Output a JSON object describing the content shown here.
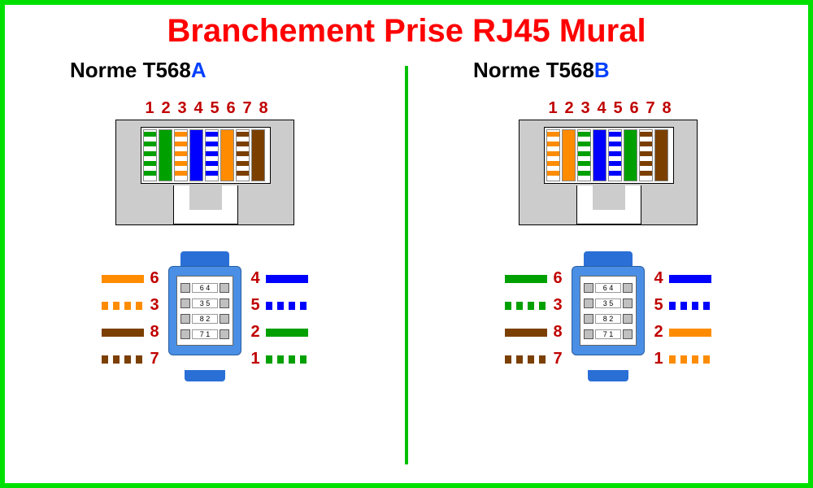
{
  "title": "Branchement Prise RJ45 Mural",
  "frame_border_color": "#00e000",
  "divider_color": "#00c000",
  "title_color": "#ff0000",
  "number_color": "#c00000",
  "jack_body_color": "#cccccc",
  "keystone_color": "#4a8fe5",
  "colors": {
    "green": "#00a000",
    "orange": "#ff8c00",
    "blue": "#0000ff",
    "brown": "#7b3f00"
  },
  "panels": [
    {
      "subtitle_prefix": "Norme T568",
      "subtitle_letter": "A",
      "subtitle_letter_color": "#0040ff",
      "pin_labels": [
        "1",
        "2",
        "3",
        "4",
        "5",
        "6",
        "7",
        "8"
      ],
      "pins": [
        {
          "style": "striped",
          "color": "green"
        },
        {
          "style": "solid",
          "color": "green"
        },
        {
          "style": "striped",
          "color": "orange"
        },
        {
          "style": "solid",
          "color": "blue"
        },
        {
          "style": "striped",
          "color": "blue"
        },
        {
          "style": "solid",
          "color": "orange"
        },
        {
          "style": "striped",
          "color": "brown"
        },
        {
          "style": "solid",
          "color": "brown"
        }
      ],
      "punchdown": {
        "left": [
          {
            "num": "6",
            "style": "solid",
            "color": "orange"
          },
          {
            "num": "3",
            "style": "dashed",
            "color": "orange"
          },
          {
            "num": "8",
            "style": "solid",
            "color": "brown"
          },
          {
            "num": "7",
            "style": "dashed",
            "color": "brown"
          }
        ],
        "right": [
          {
            "num": "4",
            "style": "solid",
            "color": "blue"
          },
          {
            "num": "5",
            "style": "dashed",
            "color": "blue"
          },
          {
            "num": "2",
            "style": "solid",
            "color": "green"
          },
          {
            "num": "1",
            "style": "dashed",
            "color": "green"
          }
        ]
      }
    },
    {
      "subtitle_prefix": "Norme T568",
      "subtitle_letter": "B",
      "subtitle_letter_color": "#0040ff",
      "pin_labels": [
        "1",
        "2",
        "3",
        "4",
        "5",
        "6",
        "7",
        "8"
      ],
      "pins": [
        {
          "style": "striped",
          "color": "orange"
        },
        {
          "style": "solid",
          "color": "orange"
        },
        {
          "style": "striped",
          "color": "green"
        },
        {
          "style": "solid",
          "color": "blue"
        },
        {
          "style": "striped",
          "color": "blue"
        },
        {
          "style": "solid",
          "color": "green"
        },
        {
          "style": "striped",
          "color": "brown"
        },
        {
          "style": "solid",
          "color": "brown"
        }
      ],
      "punchdown": {
        "left": [
          {
            "num": "6",
            "style": "solid",
            "color": "green"
          },
          {
            "num": "3",
            "style": "dashed",
            "color": "green"
          },
          {
            "num": "8",
            "style": "solid",
            "color": "brown"
          },
          {
            "num": "7",
            "style": "dashed",
            "color": "brown"
          }
        ],
        "right": [
          {
            "num": "4",
            "style": "solid",
            "color": "blue"
          },
          {
            "num": "5",
            "style": "dashed",
            "color": "blue"
          },
          {
            "num": "2",
            "style": "solid",
            "color": "orange"
          },
          {
            "num": "1",
            "style": "dashed",
            "color": "orange"
          }
        ]
      }
    }
  ]
}
